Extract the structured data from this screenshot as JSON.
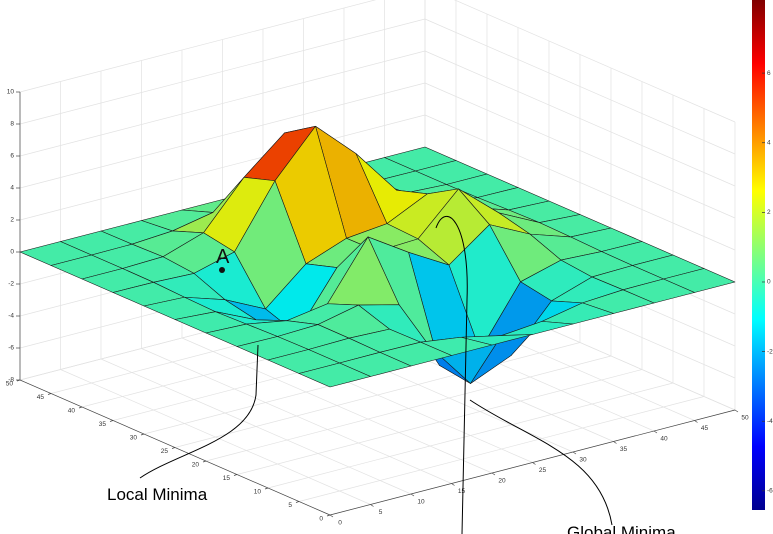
{
  "chart_data": {
    "type": "surface",
    "x": [
      0,
      5,
      10,
      15,
      20,
      25,
      30,
      35,
      40,
      45,
      50
    ],
    "y": [
      0,
      5,
      10,
      15,
      20,
      25,
      30,
      35,
      40,
      45,
      50
    ],
    "z": [
      [
        0,
        0,
        0,
        0,
        0,
        0,
        0,
        0,
        0,
        0,
        0
      ],
      [
        0,
        0,
        0.01,
        -0.01,
        -0.36,
        -0.91,
        -0.68,
        -0.18,
        -0.02,
        0,
        0
      ],
      [
        0,
        0,
        0.05,
        -0.04,
        -1.81,
        -4.75,
        -3.66,
        -0.9,
        -0.06,
        0,
        0
      ],
      [
        0,
        -0.03,
        0.06,
        0.62,
        -0.01,
        -4.46,
        -4.2,
        -0.55,
        0.15,
        0.03,
        0
      ],
      [
        0,
        -0.1,
        -0.54,
        -0.14,
        3.38,
        1.76,
        0.31,
        2.18,
        0.93,
        0.1,
        0
      ],
      [
        0,
        -0.17,
        -1.33,
        -2.84,
        0.62,
        0.98,
        1.1,
        3.57,
        1.41,
        0.15,
        0
      ],
      [
        0,
        -0.11,
        -0.92,
        -2.15,
        0.01,
        0.95,
        1.21,
        2.42,
        0.91,
        0.1,
        0
      ],
      [
        0,
        -0.02,
        -0.12,
        0.57,
        4.36,
        7.11,
        4.74,
        1.8,
        0.37,
        0.03,
        0
      ],
      [
        0,
        0,
        0.08,
        0.92,
        3.73,
        5.85,
        3.77,
        1.05,
        0.13,
        0,
        0
      ],
      [
        0,
        0,
        0.02,
        0.19,
        0.69,
        1.1,
        0.69,
        0.18,
        0.02,
        0,
        0
      ],
      [
        0,
        0,
        0,
        0,
        0,
        0,
        0,
        0,
        0,
        0,
        0
      ]
    ],
    "xlim": [
      0,
      50
    ],
    "ylim": [
      0,
      50
    ],
    "zlim": [
      -8,
      10
    ],
    "xticks": [
      0,
      5,
      10,
      15,
      20,
      25,
      30,
      35,
      40,
      45,
      50
    ],
    "yticks": [
      0,
      5,
      10,
      15,
      20,
      25,
      30,
      35,
      40,
      45,
      50
    ],
    "zticks": [
      -8,
      -6,
      -4,
      -2,
      0,
      2,
      4,
      6,
      8,
      10
    ],
    "colormap": "jet",
    "clim": [
      -6.55,
      8.1
    ],
    "colorbar_ticks": [
      -6,
      -4,
      -2,
      0,
      2,
      4,
      6
    ],
    "grid": true,
    "point_label": "A",
    "annotations": [
      "Local Minima",
      "Global Minima"
    ]
  }
}
